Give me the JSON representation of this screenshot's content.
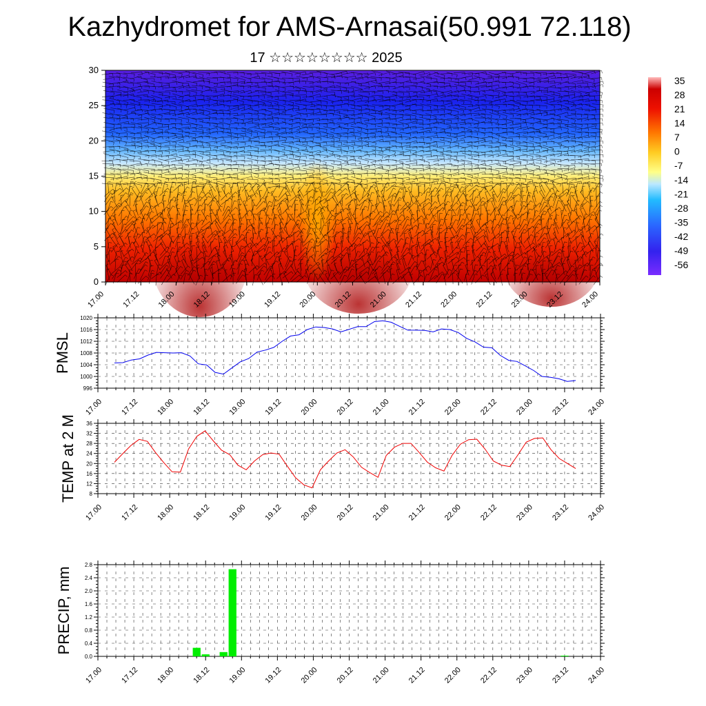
{
  "title": "Kazhydromet for AMS-Arnasai(50.991 72.118)",
  "subtitle": "17 ☆☆☆☆☆☆☆☆ 2025",
  "time_labels": [
    "17.00",
    "17.12",
    "18.00",
    "18.12",
    "19.00",
    "19.12",
    "20.00",
    "20.12",
    "21.00",
    "21.12",
    "22.00",
    "22.12",
    "23.00",
    "23.12",
    "24.00"
  ],
  "colorbar": {
    "labels": [
      "35",
      "28",
      "21",
      "14",
      "7",
      "0",
      "-7",
      "-14",
      "-21",
      "-28",
      "-35",
      "-42",
      "-49",
      "-56"
    ]
  },
  "chart_data": [
    {
      "type": "heatmap",
      "title": "",
      "xlabel": "",
      "ylabel": "",
      "ylim": [
        0,
        30
      ],
      "yticks": [
        0,
        5,
        10,
        15,
        20,
        25,
        30
      ],
      "x": [
        "17.00",
        "17.12",
        "18.00",
        "18.12",
        "19.00",
        "19.12",
        "20.00",
        "20.12",
        "21.00",
        "21.12",
        "22.00",
        "22.12",
        "23.00",
        "23.12",
        "24.00"
      ],
      "value_range": [
        -56,
        35
      ],
      "overlay": "wind barbs"
    },
    {
      "type": "line",
      "ylabel": "PMSL",
      "ylim": [
        996,
        1020
      ],
      "yticks": [
        996,
        1000,
        1004,
        1008,
        1012,
        1016,
        1020
      ],
      "series": [
        {
          "color": "#0000ee",
          "values": [
            1004.6,
            1004.7,
            1005.6,
            1006.0,
            1007.3,
            1008.2,
            1008.1,
            1008.0,
            1008.1,
            1007.0,
            1004.3,
            1003.9,
            1001.4,
            1000.8,
            1002.9,
            1005.0,
            1006.1,
            1008.3,
            1009.0,
            1009.9,
            1012.0,
            1013.8,
            1014.2,
            1016.0,
            1016.9,
            1016.7,
            1016.2,
            1015.2,
            1016.1,
            1017.0,
            1017.0,
            1018.7,
            1019.0,
            1018.5,
            1017.1,
            1015.8,
            1015.8,
            1015.7,
            1015.2,
            1016.2,
            1016.0,
            1015.0,
            1013.0,
            1011.8,
            1010.0,
            1009.8,
            1007.2,
            1005.5,
            1005.1,
            1003.6,
            1002.0,
            1000.0,
            999.7,
            999.2,
            998.3,
            998.6
          ]
        }
      ]
    },
    {
      "type": "line",
      "ylabel": "TEMP at 2 M",
      "ylim": [
        8,
        36
      ],
      "yticks": [
        8,
        12,
        16,
        20,
        24,
        28,
        32,
        36
      ],
      "series": [
        {
          "color": "#ee0000",
          "values": [
            20.5,
            23.9,
            27.2,
            29.6,
            28.8,
            24.3,
            20.3,
            16.7,
            16.6,
            25.8,
            30.8,
            33.0,
            29.0,
            25.3,
            23.5,
            19.3,
            17.5,
            21.0,
            23.5,
            24.2,
            23.7,
            18.9,
            14.3,
            11.5,
            10.3,
            17.5,
            21.0,
            24.2,
            25.5,
            22.6,
            18.5,
            16.4,
            14.5,
            23.2,
            26.5,
            28.0,
            28.0,
            24.4,
            20.5,
            18.3,
            17.0,
            23.3,
            27.7,
            29.5,
            29.7,
            25.7,
            21.0,
            19.3,
            18.8,
            23.5,
            28.5,
            30.0,
            30.2,
            25.5,
            22.0,
            20.0,
            18.0
          ]
        }
      ]
    },
    {
      "type": "bar",
      "ylabel": "PRECIP, mm",
      "ylim": [
        0,
        2.8
      ],
      "yticks": [
        "0.0",
        "0.4",
        "0.8",
        "1.2",
        "1.6",
        "2.0",
        "2.4",
        "2.8"
      ],
      "color": "#00ee00",
      "bars": [
        {
          "x": "18.09",
          "value": 0.26
        },
        {
          "x": "18.12",
          "value": 0.06
        },
        {
          "x": "18.18",
          "value": 0.13
        },
        {
          "x": "18.21",
          "value": 2.66
        },
        {
          "x": "23.12",
          "value": 0.02
        }
      ]
    }
  ]
}
